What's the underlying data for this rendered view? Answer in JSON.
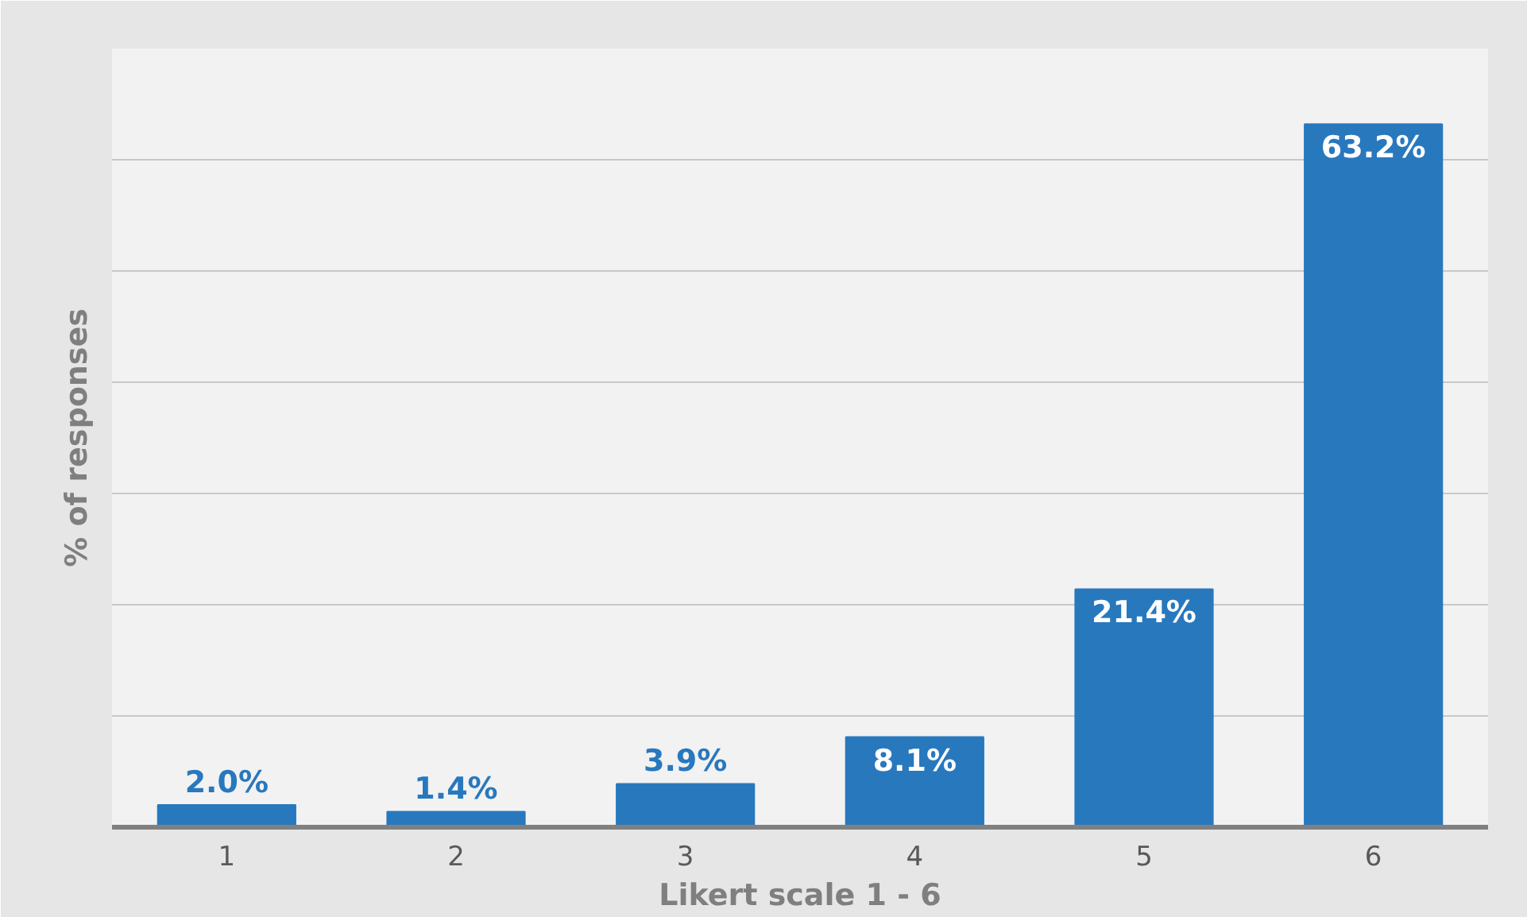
{
  "chart_data": {
    "type": "bar",
    "xlabel": "Likert scale 1 - 6",
    "ylabel": "% of responses",
    "categories": [
      "1",
      "2",
      "3",
      "4",
      "5",
      "6"
    ],
    "values": [
      2.0,
      1.4,
      3.9,
      8.1,
      21.4,
      63.2
    ],
    "value_labels": [
      "2.0%",
      "1.4%",
      "3.9%",
      "8.1%",
      "21.4%",
      "63.2%"
    ],
    "color": "#2878be",
    "ylim": [
      0,
      70
    ],
    "yticks": [
      {
        "value": 0,
        "label": null
      },
      {
        "value": 10,
        "label": null
      },
      {
        "value": 20,
        "label": null
      },
      {
        "value": 30,
        "label": null
      },
      {
        "value": 40,
        "label": null
      },
      {
        "value": 50,
        "label": null
      },
      {
        "value": 60,
        "label": null
      },
      {
        "value": 70,
        "label": null
      }
    ],
    "grid": "y",
    "tick_labels": "x"
  }
}
